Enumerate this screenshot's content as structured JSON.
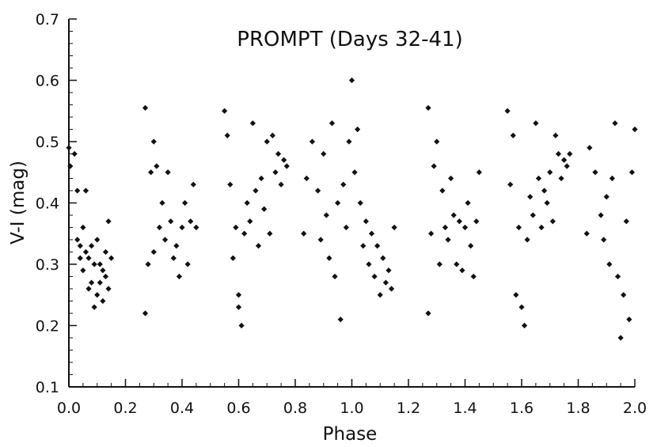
{
  "chart_data": {
    "type": "scatter",
    "title": "PROMPT (Days 32-41)",
    "xlabel": "Phase",
    "ylabel": "V-I (mag)",
    "xlim": [
      0.0,
      2.0
    ],
    "ylim": [
      0.1,
      0.7
    ],
    "xticks": [
      "0.0",
      "0.2",
      "0.4",
      "0.6",
      "0.8",
      "1.0",
      "1.2",
      "1.4",
      "1.6",
      "1.8",
      "2.0"
    ],
    "yticks": [
      "0.1",
      "0.2",
      "0.3",
      "0.4",
      "0.5",
      "0.6",
      "0.7"
    ],
    "grid": false,
    "legend": "none",
    "marker": "diamond",
    "marker_color": "#111111",
    "series": [
      {
        "x": [
          0.0,
          0.005,
          0.02,
          0.03,
          0.03,
          0.04,
          0.04,
          0.05,
          0.05,
          0.06,
          0.06,
          0.07,
          0.07,
          0.08,
          0.08,
          0.09,
          0.09,
          0.1,
          0.1,
          0.11,
          0.11,
          0.12,
          0.12,
          0.13,
          0.13,
          0.14,
          0.14,
          0.15,
          0.27,
          0.27,
          0.28,
          0.29,
          0.3,
          0.3,
          0.31,
          0.32,
          0.33,
          0.34,
          0.35,
          0.36,
          0.37,
          0.38,
          0.39,
          0.4,
          0.41,
          0.42,
          0.43,
          0.44,
          0.45,
          0.55,
          0.56,
          0.57,
          0.58,
          0.59,
          0.6,
          0.6,
          0.61,
          0.62,
          0.63,
          0.64,
          0.65,
          0.66,
          0.67,
          0.68,
          0.69,
          0.7,
          0.71,
          0.72,
          0.73,
          0.74,
          0.75,
          0.76,
          0.77,
          0.83,
          0.84,
          0.86,
          0.88,
          0.89,
          0.9,
          0.91,
          0.92,
          0.93,
          0.94,
          0.95,
          0.96,
          0.97,
          0.98,
          0.99,
          1.0,
          1.01,
          1.02,
          1.03,
          1.04,
          1.05,
          1.06,
          1.07,
          1.08,
          1.09,
          1.1,
          1.11,
          1.12,
          1.13,
          1.14,
          1.15,
          1.27,
          1.27,
          1.28,
          1.29,
          1.3,
          1.31,
          1.32,
          1.33,
          1.34,
          1.35,
          1.36,
          1.37,
          1.38,
          1.39,
          1.4,
          1.41,
          1.42,
          1.43,
          1.44,
          1.45,
          1.55,
          1.56,
          1.57,
          1.58,
          1.59,
          1.6,
          1.61,
          1.62,
          1.63,
          1.64,
          1.65,
          1.66,
          1.67,
          1.68,
          1.69,
          1.7,
          1.71,
          1.72,
          1.73,
          1.74,
          1.75,
          1.76,
          1.77,
          1.83,
          1.84,
          1.86,
          1.88,
          1.89,
          1.9,
          1.91,
          1.92,
          1.93,
          1.94,
          1.95,
          1.96,
          1.97,
          1.98,
          1.99,
          2.0
        ],
        "y": [
          0.49,
          0.46,
          0.48,
          0.42,
          0.34,
          0.33,
          0.31,
          0.36,
          0.29,
          0.32,
          0.42,
          0.31,
          0.26,
          0.27,
          0.33,
          0.23,
          0.3,
          0.25,
          0.34,
          0.3,
          0.27,
          0.29,
          0.24,
          0.32,
          0.28,
          0.37,
          0.26,
          0.31,
          0.555,
          0.22,
          0.3,
          0.45,
          0.5,
          0.32,
          0.46,
          0.36,
          0.4,
          0.34,
          0.45,
          0.37,
          0.31,
          0.33,
          0.28,
          0.36,
          0.4,
          0.3,
          0.37,
          0.43,
          0.36,
          0.55,
          0.51,
          0.43,
          0.31,
          0.36,
          0.25,
          0.23,
          0.2,
          0.35,
          0.4,
          0.37,
          0.53,
          0.42,
          0.33,
          0.44,
          0.39,
          0.5,
          0.35,
          0.51,
          0.45,
          0.48,
          0.43,
          0.47,
          0.46,
          0.35,
          0.44,
          0.5,
          0.42,
          0.34,
          0.48,
          0.38,
          0.31,
          0.53,
          0.28,
          0.4,
          0.21,
          0.43,
          0.36,
          0.5,
          0.6,
          0.45,
          0.52,
          0.4,
          0.33,
          0.37,
          0.3,
          0.35,
          0.28,
          0.33,
          0.25,
          0.31,
          0.27,
          0.29,
          0.26,
          0.36,
          0.555,
          0.22,
          0.35,
          0.46,
          0.5,
          0.3,
          0.42,
          0.36,
          0.34,
          0.44,
          0.38,
          0.3,
          0.37,
          0.29,
          0.36,
          0.4,
          0.33,
          0.28,
          0.37,
          0.45,
          0.55,
          0.43,
          0.51,
          0.25,
          0.36,
          0.23,
          0.2,
          0.34,
          0.41,
          0.38,
          0.53,
          0.44,
          0.36,
          0.42,
          0.4,
          0.45,
          0.37,
          0.51,
          0.48,
          0.44,
          0.47,
          0.46,
          0.48,
          0.35,
          0.49,
          0.45,
          0.38,
          0.34,
          0.41,
          0.3,
          0.44,
          0.53,
          0.28,
          0.18,
          0.25,
          0.37,
          0.21,
          0.45,
          0.52
        ]
      }
    ]
  }
}
